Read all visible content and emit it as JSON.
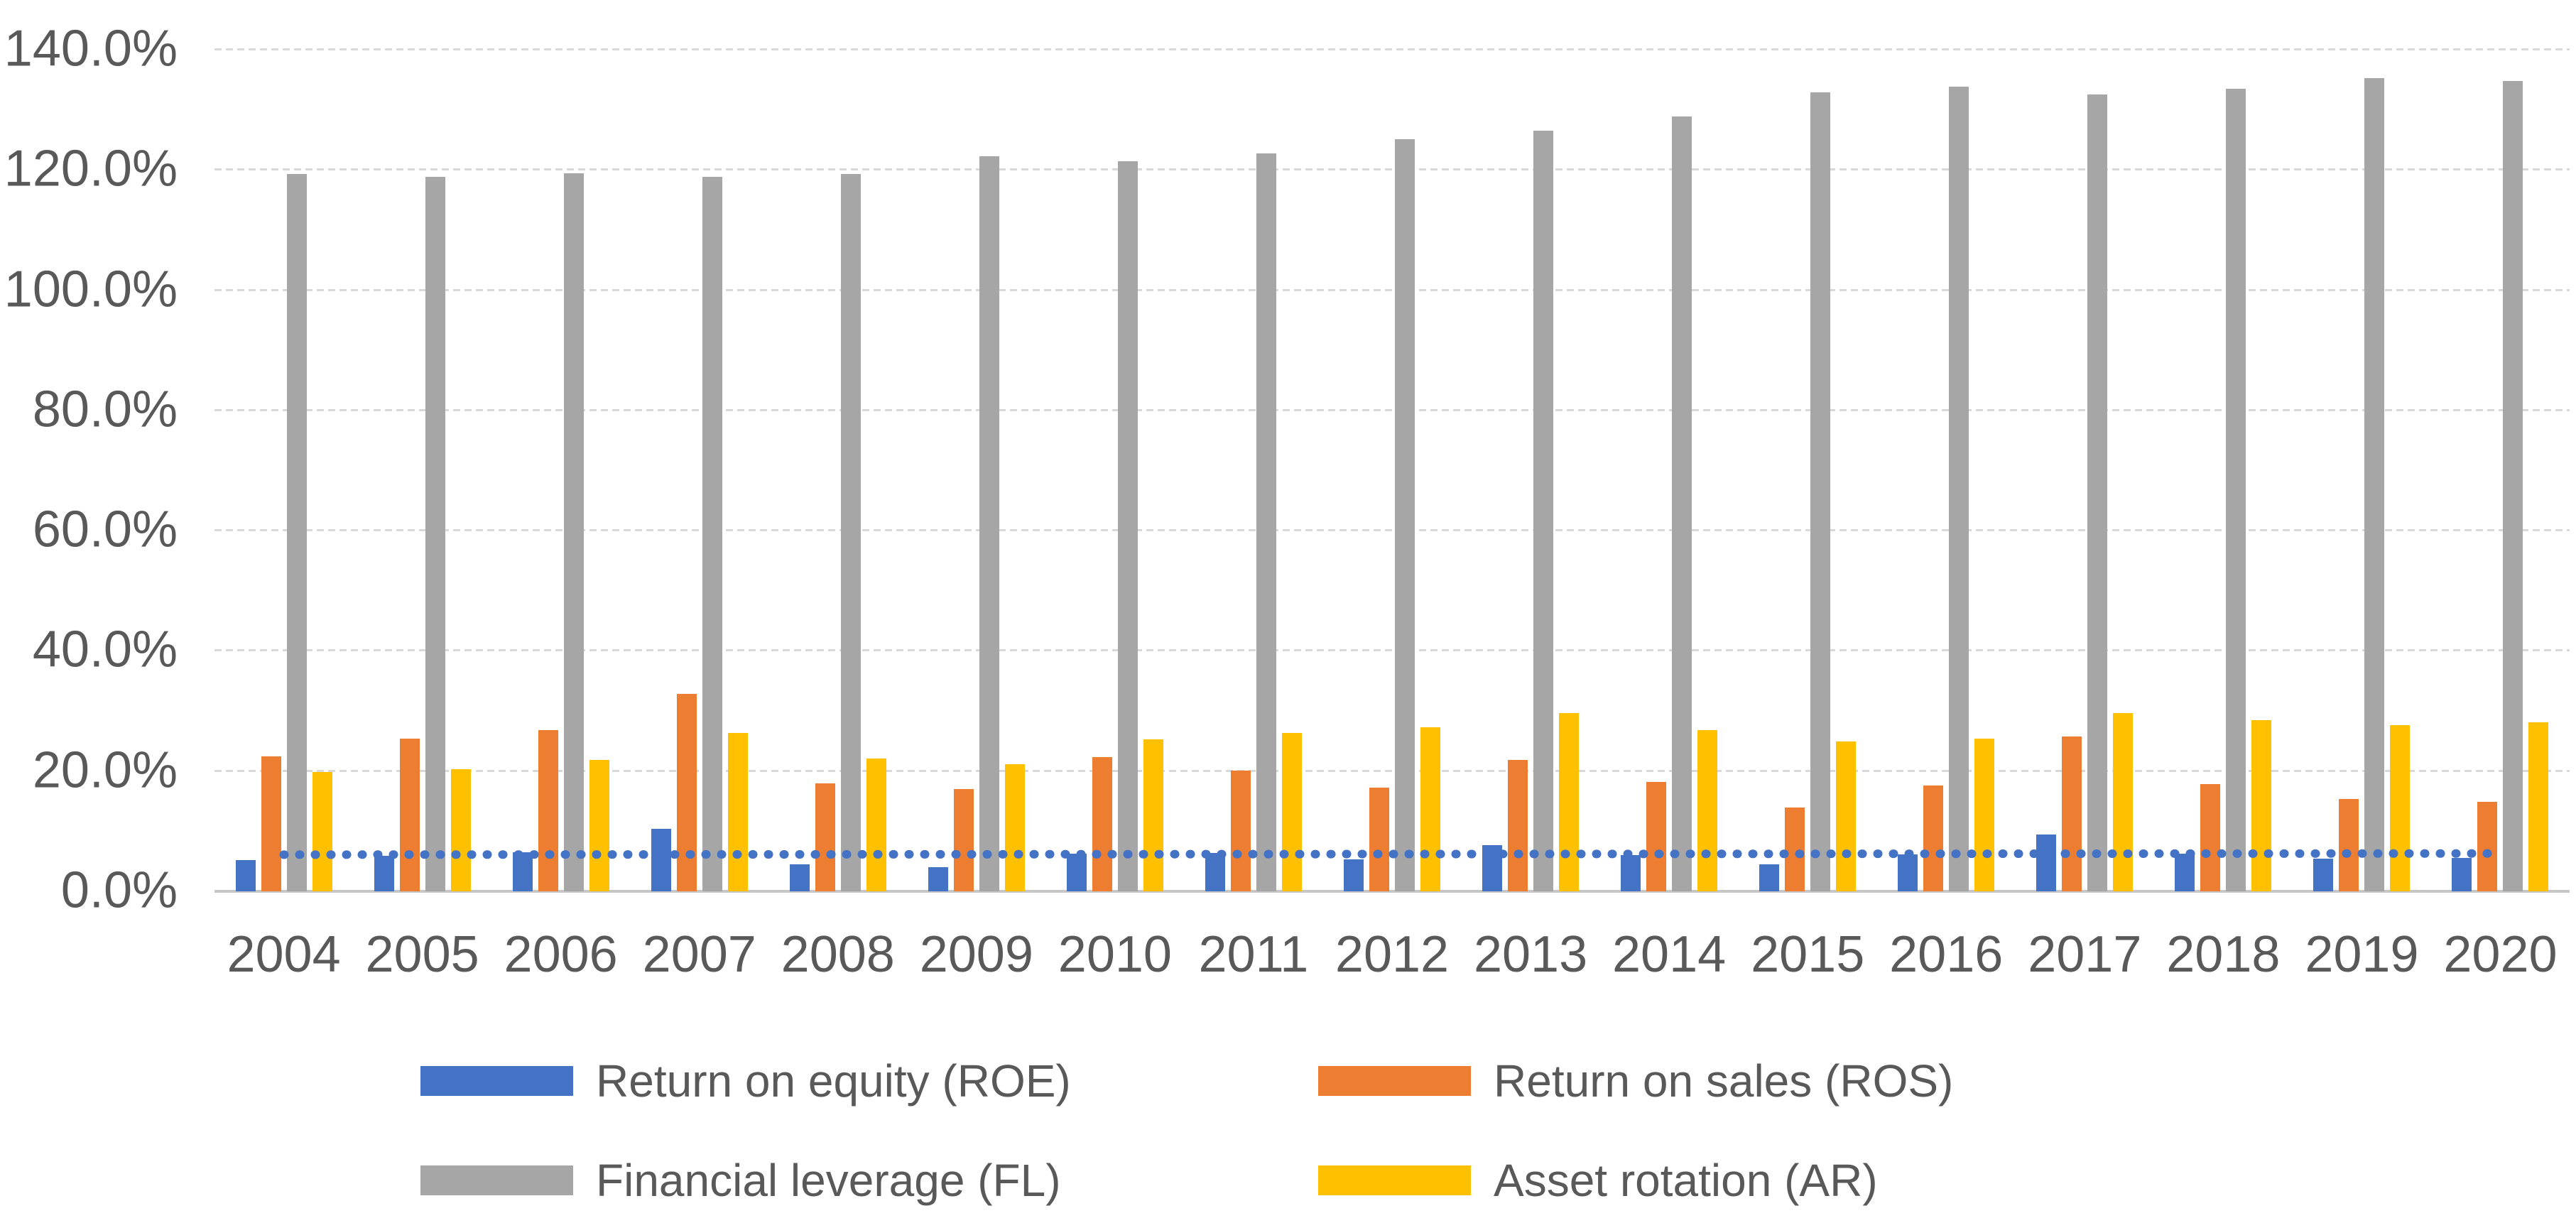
{
  "figure": {
    "background": "#ffffff",
    "text_color": "#595959",
    "gridline_color": "#d9d9d9",
    "axis_line_color": "#c6c6c6"
  },
  "chart_data": {
    "type": "bar",
    "title": "",
    "xlabel": "",
    "ylabel": "",
    "grid": true,
    "legend_position": "bottom",
    "legend_columns": 2,
    "categories": [
      "2004",
      "2005",
      "2006",
      "2007",
      "2008",
      "2009",
      "2010",
      "2011",
      "2012",
      "2013",
      "2014",
      "2015",
      "2016",
      "2017",
      "2018",
      "2019",
      "2020"
    ],
    "series": [
      {
        "name": "Return on equity (ROE)",
        "short": "ROE",
        "color": "#4472C4",
        "values": [
          5.2,
          5.9,
          6.5,
          10.4,
          4.5,
          4.0,
          6.3,
          6.4,
          5.3,
          7.7,
          6.0,
          4.5,
          6.2,
          9.5,
          6.3,
          5.4,
          5.5
        ]
      },
      {
        "name": "Return on sales (ROS)",
        "short": "ROS",
        "color": "#ED7D31",
        "values": [
          22.5,
          25.4,
          26.8,
          32.8,
          18.0,
          17.0,
          22.3,
          20.1,
          17.2,
          21.9,
          18.2,
          14.0,
          17.6,
          25.7,
          17.8,
          15.4,
          14.9
        ]
      },
      {
        "name": "Financial leverage (FL)",
        "short": "FL",
        "color": "#A6A6A6",
        "values": [
          119.3,
          118.9,
          119.5,
          118.9,
          119.3,
          122.3,
          121.4,
          122.7,
          125.1,
          126.5,
          128.9,
          132.9,
          133.9,
          132.5,
          133.5,
          135.3,
          134.8
        ]
      },
      {
        "name": "Asset rotation (AR)",
        "short": "AR",
        "color": "#FFC000",
        "values": [
          19.8,
          20.3,
          21.8,
          26.3,
          22.1,
          21.1,
          25.3,
          26.3,
          27.3,
          29.7,
          26.8,
          24.9,
          25.4,
          29.7,
          28.5,
          27.6,
          28.1
        ]
      }
    ],
    "trendline": {
      "series": "Return on equity (ROE)",
      "style": "dotted",
      "color": "#4472C4",
      "start_value": 6.1,
      "end_value": 6.3
    },
    "y_axis": {
      "min": 0,
      "max": 140,
      "step": 20,
      "unit": "%",
      "tick_labels": [
        "0.0%",
        "20.0%",
        "40.0%",
        "60.0%",
        "80.0%",
        "100.0%",
        "120.0%",
        "140.0%"
      ]
    }
  }
}
